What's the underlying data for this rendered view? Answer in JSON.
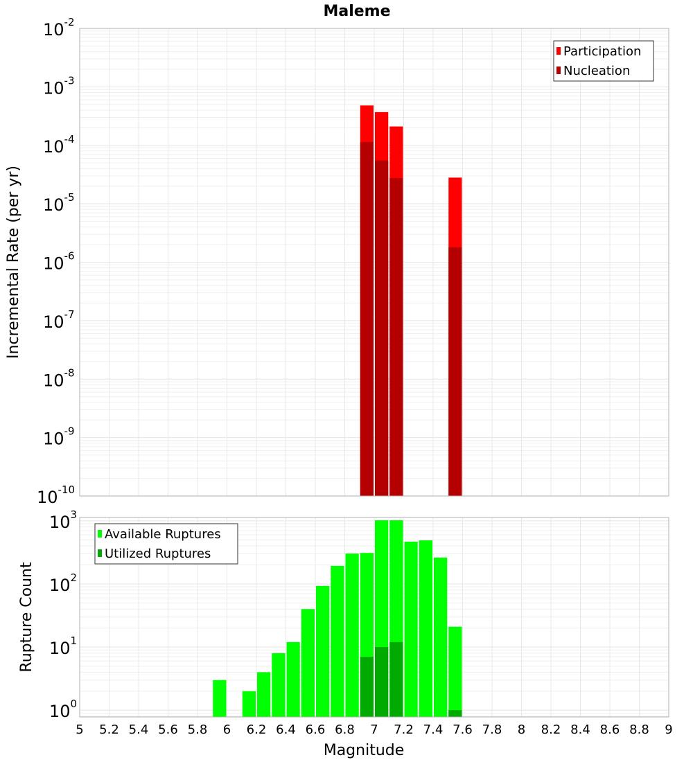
{
  "chart_data": [
    {
      "type": "bar",
      "title": "Maleme",
      "xlabel": "",
      "ylabel": "Incremental Rate (per yr)",
      "yscale": "log",
      "ylim": [
        1e-10,
        0.01
      ],
      "xlim": [
        5,
        9
      ],
      "bin_width": 0.1,
      "grid": true,
      "legend_position": "top-right",
      "x": [
        6.95,
        7.05,
        7.15,
        7.55
      ],
      "series": [
        {
          "name": "Participation",
          "color": "#ff0000",
          "values": [
            0.00048,
            0.00037,
            0.00021,
            2.8e-05
          ]
        },
        {
          "name": "Nucleation",
          "color": "#b40000",
          "values": [
            0.000114,
            5.5e-05,
            2.75e-05,
            1.8e-06
          ]
        }
      ],
      "ytick_exponents": [
        -10,
        -9,
        -8,
        -7,
        -6,
        -5,
        -4,
        -3,
        -2
      ]
    },
    {
      "type": "bar",
      "xlabel": "Magnitude",
      "ylabel": "Rupture Count",
      "yscale": "log",
      "ylim": [
        0.78,
        1130
      ],
      "xlim": [
        5,
        9
      ],
      "bin_width": 0.1,
      "grid": true,
      "legend_position": "top-left",
      "x": [
        5.95,
        6.15,
        6.25,
        6.35,
        6.45,
        6.55,
        6.65,
        6.75,
        6.85,
        6.95,
        7.05,
        7.15,
        7.25,
        7.35,
        7.45,
        7.55
      ],
      "series": [
        {
          "name": "Available Ruptures",
          "color": "#00ff00",
          "values": [
            3,
            2,
            4,
            8,
            12,
            40,
            93,
            193,
            303,
            310,
            1020,
            1020,
            468,
            490,
            262,
            21
          ]
        },
        {
          "name": "Utilized Ruptures",
          "color": "#00aa00",
          "values": [
            0,
            0,
            0,
            0,
            0,
            0,
            0,
            0,
            0,
            7,
            10,
            12,
            0,
            0,
            0,
            1
          ]
        }
      ],
      "ytick_exponents": [
        0,
        1,
        2,
        3
      ],
      "xticks": [
        "5",
        "5.2",
        "5.4",
        "5.6",
        "5.8",
        "6",
        "6.2",
        "6.4",
        "6.6",
        "6.8",
        "7",
        "7.2",
        "7.4",
        "7.6",
        "7.8",
        "8",
        "8.2",
        "8.4",
        "8.6",
        "8.8",
        "9"
      ]
    }
  ]
}
